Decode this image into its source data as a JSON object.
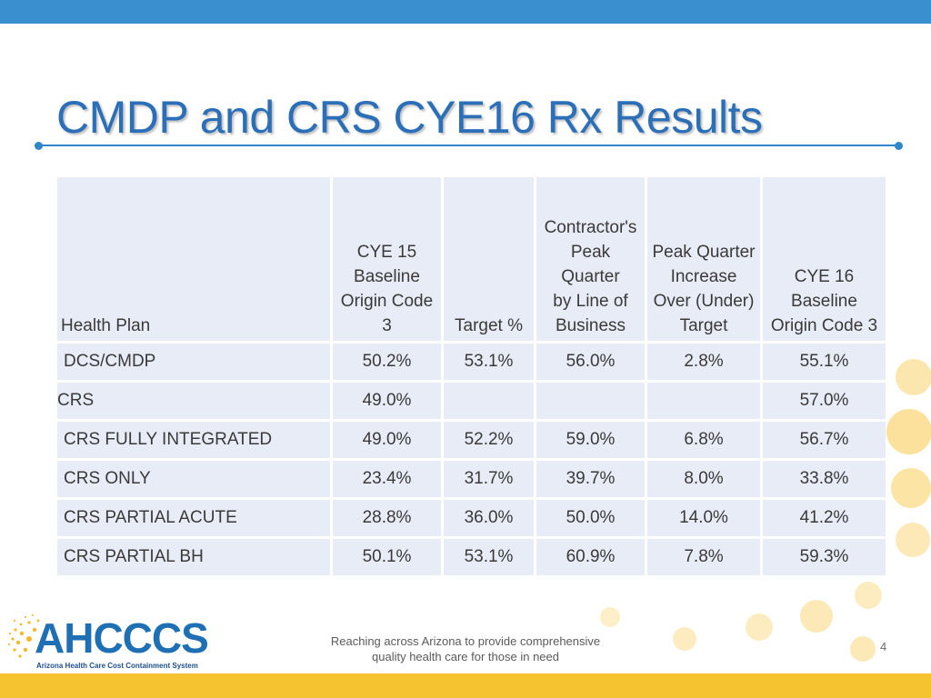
{
  "slide": {
    "title": "CMDP and CRS CYE16 Rx Results",
    "page_number": "4"
  },
  "table": {
    "headers": [
      {
        "lines": [
          "Health Plan"
        ]
      },
      {
        "lines": [
          "CYE 15",
          "Baseline",
          "Origin Code",
          "3"
        ]
      },
      {
        "lines": [
          "Target %"
        ]
      },
      {
        "lines": [
          "Contractor's",
          "Peak Quarter",
          "by Line of",
          "Business"
        ]
      },
      {
        "lines": [
          "Peak Quarter",
          "Increase",
          "Over (Under)",
          "Target"
        ]
      },
      {
        "lines": [
          "CYE 16",
          "Baseline",
          "Origin Code 3"
        ]
      }
    ],
    "rows": [
      [
        "DCS/CMDP",
        "50.2%",
        "53.1%",
        "56.0%",
        "2.8%",
        "55.1%"
      ],
      [
        "CRS",
        "49.0%",
        "",
        "",
        "",
        "57.0%"
      ],
      [
        "CRS FULLY INTEGRATED",
        "49.0%",
        "52.2%",
        "59.0%",
        "6.8%",
        "56.7%"
      ],
      [
        "CRS ONLY",
        "23.4%",
        "31.7%",
        "39.7%",
        "8.0%",
        "33.8%"
      ],
      [
        "CRS PARTIAL ACUTE",
        "28.8%",
        "36.0%",
        "50.0%",
        "14.0%",
        "41.2%"
      ],
      [
        "CRS PARTIAL BH",
        "50.1%",
        "53.1%",
        "60.9%",
        "7.8%",
        "59.3%"
      ]
    ]
  },
  "footer": {
    "tagline_line1": "Reaching across Arizona to provide comprehensive",
    "tagline_line2": "quality health care for those in need",
    "logo_text": "AHCCCS",
    "logo_subtext": "Arizona Health Care Cost Containment System"
  },
  "colors": {
    "top_bar": "#3a8fce",
    "title": "#2b6fb8",
    "table_cell": "#e7ecf6",
    "footer_bar": "#f5c230",
    "decoration": "#f7c94a"
  }
}
